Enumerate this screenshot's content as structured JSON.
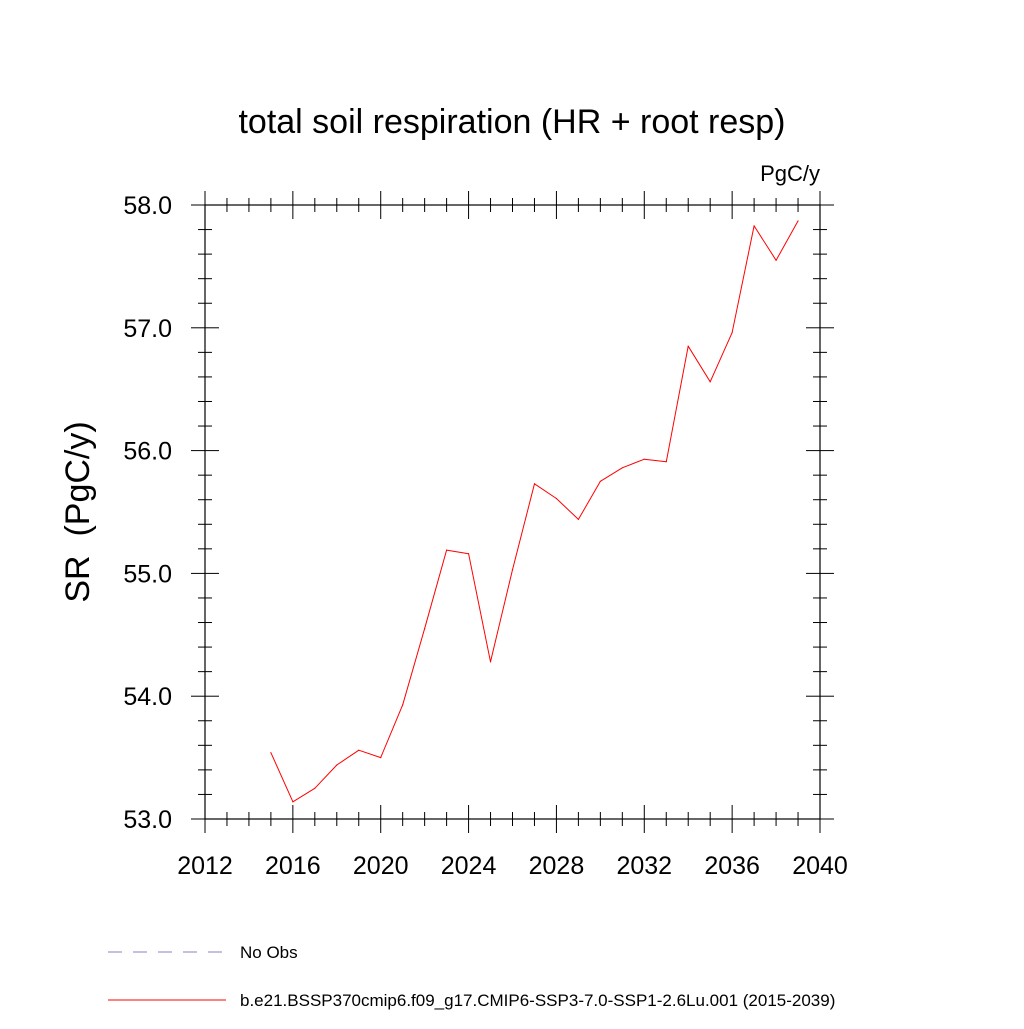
{
  "chart_data": {
    "type": "line",
    "title": "total soil respiration (HR + root resp)",
    "units_label": "PgC/y",
    "ylabel": "SR  (PgC/y)",
    "xlabel": "",
    "xlim": [
      2012,
      2040
    ],
    "ylim": [
      53.0,
      58.0
    ],
    "x_ticks": [
      2012,
      2016,
      2020,
      2024,
      2028,
      2032,
      2036,
      2040
    ],
    "y_ticks": [
      "53.0",
      "54.0",
      "55.0",
      "56.0",
      "57.0",
      "58.0"
    ],
    "y_tick_values": [
      53.0,
      54.0,
      55.0,
      56.0,
      57.0,
      58.0
    ],
    "grid": false,
    "legend_placement": "bottom",
    "series": [
      {
        "name": "b.e21.BSSP370cmip6.f09_g17.CMIP6-SSP3-7.0-SSP1-2.6Lu.001 (2015-2039)",
        "color": "#ff0000",
        "style": "solid",
        "x": [
          2015,
          2016,
          2017,
          2018,
          2019,
          2020,
          2021,
          2022,
          2023,
          2024,
          2025,
          2026,
          2027,
          2028,
          2029,
          2030,
          2031,
          2032,
          2033,
          2034,
          2035,
          2036,
          2037,
          2038,
          2039
        ],
        "y": [
          53.54,
          53.14,
          53.25,
          53.44,
          53.56,
          53.5,
          53.93,
          54.55,
          55.19,
          55.16,
          54.28,
          55.03,
          55.73,
          55.61,
          55.44,
          55.75,
          55.86,
          55.93,
          55.91,
          56.85,
          56.56,
          56.96,
          57.83,
          57.55,
          57.87
        ]
      }
    ],
    "legend": [
      {
        "label": "No Obs",
        "color": "#8a80c0",
        "style": "dashed"
      },
      {
        "label": "b.e21.BSSP370cmip6.f09_g17.CMIP6-SSP3-7.0-SSP1-2.6Lu.001 (2015-2039)",
        "color": "#ff0000",
        "style": "solid"
      }
    ]
  }
}
